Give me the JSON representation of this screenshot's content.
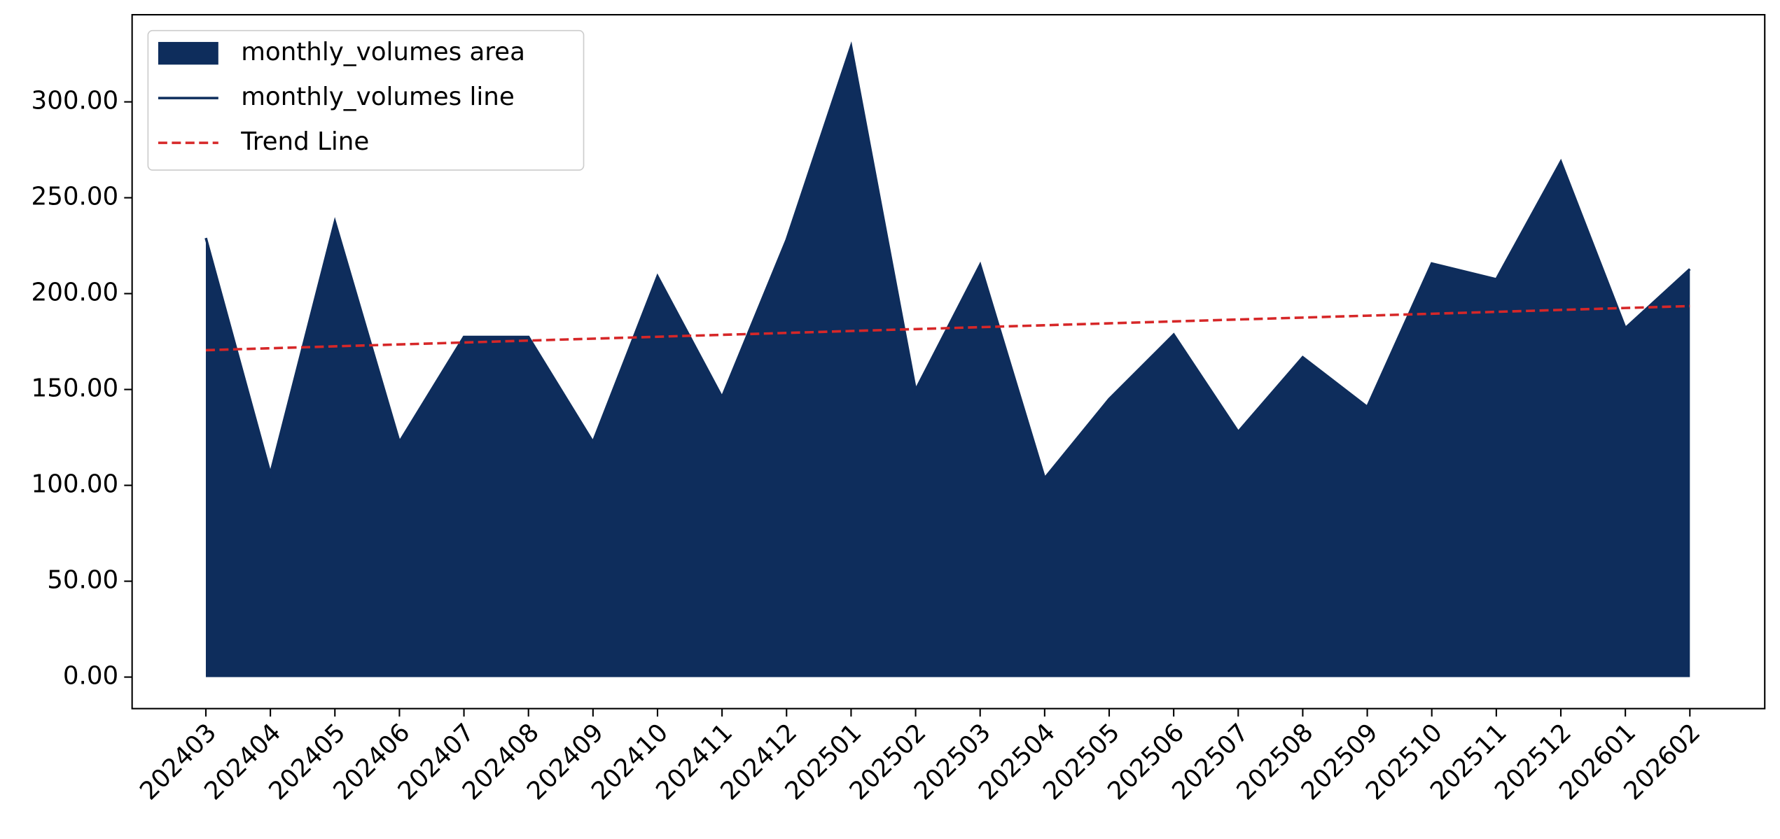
{
  "chart_data": {
    "type": "area",
    "categories": [
      "202403",
      "202404",
      "202405",
      "202406",
      "202407",
      "202408",
      "202409",
      "202410",
      "202411",
      "202412",
      "202501",
      "202502",
      "202503",
      "202504",
      "202505",
      "202506",
      "202507",
      "202508",
      "202509",
      "202510",
      "202511",
      "202512",
      "202601",
      "202602"
    ],
    "series": [
      {
        "name": "monthly_volumes area",
        "color": "#0e2d5c",
        "kind": "area",
        "values": [
          229,
          106,
          237.5,
          122.6,
          177.4,
          177.4,
          122.6,
          209,
          146,
          228,
          329,
          149.7,
          215,
          103.7,
          145,
          178.6,
          127.9,
          166.8,
          140.9,
          215.7,
          207.5,
          268.8,
          182,
          212.8
        ]
      },
      {
        "name": "monthly_volumes line",
        "color": "#0e2d5c",
        "kind": "line",
        "values": [
          229,
          106,
          237.5,
          122.6,
          177.4,
          177.4,
          122.6,
          209,
          146,
          228,
          329,
          149.7,
          215,
          103.7,
          145,
          178.6,
          127.9,
          166.8,
          140.9,
          215.7,
          207.5,
          268.8,
          182,
          212.8
        ]
      },
      {
        "name": "Trend Line",
        "color": "#d62728",
        "kind": "dashed",
        "values": [
          170.5,
          171.5,
          172.5,
          173.5,
          174.5,
          175.5,
          176.5,
          177.5,
          178.5,
          179.5,
          180.5,
          181.5,
          182.5,
          183.5,
          184.5,
          185.5,
          186.5,
          187.5,
          188.5,
          189.5,
          190.5,
          191.5,
          192.5,
          193.5
        ]
      }
    ],
    "ylim": [
      -16.45,
      345.45
    ],
    "yticks": [
      {
        "value": 0,
        "label": "0.00"
      },
      {
        "value": 50,
        "label": "50.00"
      },
      {
        "value": 100,
        "label": "100.00"
      },
      {
        "value": 150,
        "label": "150.00"
      },
      {
        "value": 200,
        "label": "200.00"
      },
      {
        "value": 250,
        "label": "250.00"
      },
      {
        "value": 300,
        "label": "300.00"
      }
    ],
    "legend": "upper left"
  }
}
